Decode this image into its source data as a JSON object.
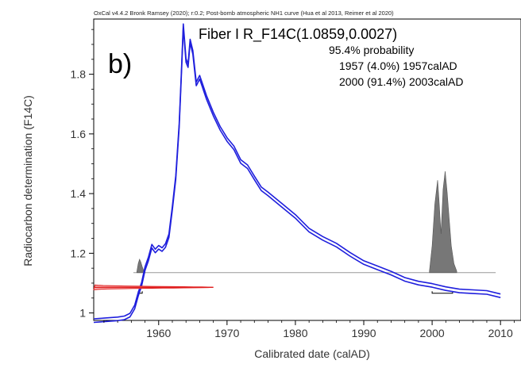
{
  "chart_data": {
    "type": "line",
    "credit": "OxCal v4.4.2 Bronk Ramsey (2020); r:0.2; Post-bomb atmospheric NH1 curve (Hua et al 2013, Reimer et al 2020)",
    "panel_label": "b)",
    "sample_title": "Fiber I R_F14C(1.0859,0.0027)",
    "probability_header": "95.4% probability",
    "probability_lines": [
      "1957 (4.0%) 1957calAD",
      "2000 (91.4%) 2003calAD"
    ],
    "xlabel": "Calibrated date (calAD)",
    "ylabel": "Radiocarbon determination (F14C)",
    "xlim": [
      1950.5,
      2013
    ],
    "ylim": [
      0.975,
      1.985
    ],
    "x_ticks": [
      1960,
      1970,
      1980,
      1990,
      2000,
      2010
    ],
    "y_ticks": [
      1,
      1.2,
      1.4,
      1.6,
      1.8
    ],
    "y_tick_labels": [
      "1",
      "1.2",
      "1.4",
      "1.6",
      "1.8"
    ],
    "colors": {
      "curve": "#1f1fdd",
      "measurement": "#e02020",
      "posterior": "#777777",
      "range_line": "#999999"
    },
    "calibration_curve": {
      "name": "Post-bomb atmospheric NH1",
      "x": [
        1950.5,
        1952,
        1954,
        1955,
        1955.8,
        1956.5,
        1957,
        1957.5,
        1958,
        1958.5,
        1959,
        1959.5,
        1960,
        1960.5,
        1961,
        1961.5,
        1962,
        1962.5,
        1963,
        1963.3,
        1963.6,
        1964,
        1964.3,
        1964.6,
        1965,
        1965.5,
        1966,
        1967,
        1968,
        1969,
        1970,
        1971,
        1972,
        1973,
        1974,
        1975,
        1976,
        1978,
        1980,
        1982,
        1984,
        1986,
        1988,
        1990,
        1992,
        1994,
        1996,
        1998,
        2000,
        2002,
        2004,
        2006,
        2008,
        2010
      ],
      "y": [
        0.978,
        0.978,
        0.979,
        0.98,
        0.995,
        1.02,
        1.06,
        1.1,
        1.15,
        1.18,
        1.22,
        1.21,
        1.22,
        1.21,
        1.23,
        1.26,
        1.35,
        1.45,
        1.63,
        1.79,
        1.96,
        1.85,
        1.83,
        1.91,
        1.87,
        1.77,
        1.79,
        1.72,
        1.67,
        1.62,
        1.58,
        1.55,
        1.51,
        1.49,
        1.45,
        1.42,
        1.4,
        1.36,
        1.32,
        1.28,
        1.25,
        1.225,
        1.2,
        1.17,
        1.15,
        1.13,
        1.115,
        1.1,
        1.09,
        1.085,
        1.075,
        1.07,
        1.065,
        1.06
      ],
      "band_halfwidth": 0.006
    },
    "measurement": {
      "value": 1.0859,
      "sigma": 0.0027
    },
    "posterior": {
      "baseline_y": 1.135,
      "x_start": 1956.3,
      "x_end": 2009.3,
      "hpd_ranges": [
        [
          1957,
          1957.6
        ],
        [
          2000,
          2003
        ]
      ],
      "peaks": [
        {
          "x": [
            1956.8,
            1957,
            1957.2,
            1957.4,
            1957.6,
            1957.8,
            1958
          ],
          "h": [
            0.002,
            0.03,
            0.045,
            0.035,
            0.02,
            0.008,
            0.002
          ]
        },
        {
          "x": [
            1999.6,
            2000,
            2000.4,
            2000.8,
            2001,
            2001.3,
            2001.6,
            2001.9,
            2002.2,
            2002.5,
            2002.8,
            2003.2,
            2003.6
          ],
          "h": [
            0.005,
            0.09,
            0.23,
            0.31,
            0.245,
            0.13,
            0.28,
            0.34,
            0.27,
            0.18,
            0.09,
            0.03,
            0.005
          ]
        }
      ]
    }
  }
}
